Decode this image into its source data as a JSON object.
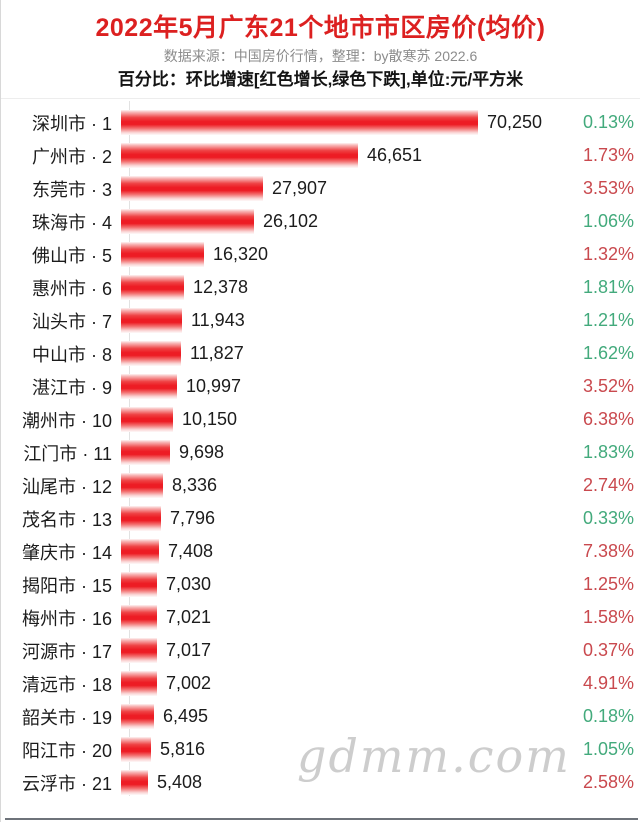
{
  "header": {
    "title": "2022年5月广东21个地市市区房价(均价)",
    "subtitle": "数据来源：中国房价行情，整理：by散寒苏  2022.6",
    "note": "百分比：环比增速[红色增长,绿色下跌],单位:元/平方米"
  },
  "watermark": "gdmm.com",
  "colors": {
    "title_red": "#dc2020",
    "subtitle_gray": "#8c8c8c",
    "text_dark": "#1c1c1c",
    "bar_red": "#ed1c24",
    "increase_red": "#c9494e",
    "decrease_green": "#43aa7c",
    "gridline": "#ececec"
  },
  "chart_data": {
    "type": "bar",
    "orientation": "horizontal",
    "title": "2022年5月广东21个地市市区房价(均价)",
    "unit": "元/平方米",
    "xlabel": "",
    "ylabel": "",
    "xlim": [
      0,
      84500
    ],
    "grid": true,
    "grid_interval": 20000,
    "pct_legend": {
      "red": "环比增长",
      "green": "环比下跌"
    },
    "categories": [
      "深圳市",
      "广州市",
      "东莞市",
      "珠海市",
      "佛山市",
      "惠州市",
      "汕头市",
      "中山市",
      "湛江市",
      "潮州市",
      "江门市",
      "汕尾市",
      "茂名市",
      "肇庆市",
      "揭阳市",
      "梅州市",
      "河源市",
      "清远市",
      "韶关市",
      "阳江市",
      "云浮市"
    ],
    "values": [
      70250,
      46651,
      27907,
      26102,
      16320,
      12378,
      11943,
      11827,
      10997,
      10150,
      9698,
      8336,
      7796,
      7408,
      7030,
      7021,
      7017,
      7002,
      6495,
      5816,
      5408
    ],
    "max_value": 70250,
    "rows": [
      {
        "label": "深圳市 · 1",
        "city": "深圳市",
        "rank": 1,
        "value": 70250,
        "value_text": "70,250",
        "pct": "0.13%",
        "direction": "down"
      },
      {
        "label": "广州市 · 2",
        "city": "广州市",
        "rank": 2,
        "value": 46651,
        "value_text": "46,651",
        "pct": "1.73%",
        "direction": "up"
      },
      {
        "label": "东莞市 · 3",
        "city": "东莞市",
        "rank": 3,
        "value": 27907,
        "value_text": "27,907",
        "pct": "3.53%",
        "direction": "up"
      },
      {
        "label": "珠海市 · 4",
        "city": "珠海市",
        "rank": 4,
        "value": 26102,
        "value_text": "26,102",
        "pct": "1.06%",
        "direction": "down"
      },
      {
        "label": "佛山市 · 5",
        "city": "佛山市",
        "rank": 5,
        "value": 16320,
        "value_text": "16,320",
        "pct": "1.32%",
        "direction": "up"
      },
      {
        "label": "惠州市 · 6",
        "city": "惠州市",
        "rank": 6,
        "value": 12378,
        "value_text": "12,378",
        "pct": "1.81%",
        "direction": "down"
      },
      {
        "label": "汕头市 · 7",
        "city": "汕头市",
        "rank": 7,
        "value": 11943,
        "value_text": "11,943",
        "pct": "1.21%",
        "direction": "down"
      },
      {
        "label": "中山市 · 8",
        "city": "中山市",
        "rank": 8,
        "value": 11827,
        "value_text": "11,827",
        "pct": "1.62%",
        "direction": "down"
      },
      {
        "label": "湛江市 · 9",
        "city": "湛江市",
        "rank": 9,
        "value": 10997,
        "value_text": "10,997",
        "pct": "3.52%",
        "direction": "up"
      },
      {
        "label": "潮州市 · 10",
        "city": "潮州市",
        "rank": 10,
        "value": 10150,
        "value_text": "10,150",
        "pct": "6.38%",
        "direction": "up"
      },
      {
        "label": "江门市 · 11",
        "city": "江门市",
        "rank": 11,
        "value": 9698,
        "value_text": "9,698",
        "pct": "1.83%",
        "direction": "down"
      },
      {
        "label": "汕尾市 · 12",
        "city": "汕尾市",
        "rank": 12,
        "value": 8336,
        "value_text": "8,336",
        "pct": "2.74%",
        "direction": "up"
      },
      {
        "label": "茂名市 · 13",
        "city": "茂名市",
        "rank": 13,
        "value": 7796,
        "value_text": "7,796",
        "pct": "0.33%",
        "direction": "down"
      },
      {
        "label": "肇庆市 · 14",
        "city": "肇庆市",
        "rank": 14,
        "value": 7408,
        "value_text": "7,408",
        "pct": "7.38%",
        "direction": "up"
      },
      {
        "label": "揭阳市 · 15",
        "city": "揭阳市",
        "rank": 15,
        "value": 7030,
        "value_text": "7,030",
        "pct": "1.25%",
        "direction": "up"
      },
      {
        "label": "梅州市 · 16",
        "city": "梅州市",
        "rank": 16,
        "value": 7021,
        "value_text": "7,021",
        "pct": "1.58%",
        "direction": "up"
      },
      {
        "label": "河源市 · 17",
        "city": "河源市",
        "rank": 17,
        "value": 7017,
        "value_text": "7,017",
        "pct": "0.37%",
        "direction": "up"
      },
      {
        "label": "清远市 · 18",
        "city": "清远市",
        "rank": 18,
        "value": 7002,
        "value_text": "7,002",
        "pct": "4.91%",
        "direction": "up"
      },
      {
        "label": "韶关市 · 19",
        "city": "韶关市",
        "rank": 19,
        "value": 6495,
        "value_text": "6,495",
        "pct": "0.18%",
        "direction": "down"
      },
      {
        "label": "阳江市 · 20",
        "city": "阳江市",
        "rank": 20,
        "value": 5816,
        "value_text": "5,816",
        "pct": "1.05%",
        "direction": "down"
      },
      {
        "label": "云浮市 · 21",
        "city": "云浮市",
        "rank": 21,
        "value": 5408,
        "value_text": "5,408",
        "pct": "2.58%",
        "direction": "up"
      }
    ]
  }
}
